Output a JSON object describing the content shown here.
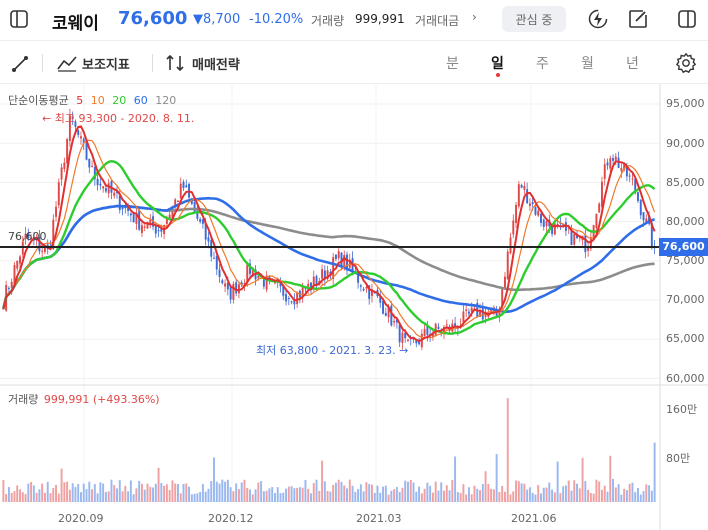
{
  "header": {
    "stock_name": "코웨이",
    "price": "76,600",
    "change": "▼8,700",
    "change_pct": "-10.20%",
    "volume_label": "거래량",
    "volume_value": "999,991",
    "amount_label": "거래대금",
    "more_label": "›",
    "favorite_label": "관심 중"
  },
  "toolbar": {
    "indicator_label": "보조지표",
    "trade_strategy_label": "매매전략",
    "periods": [
      "분",
      "일",
      "주",
      "월",
      "년"
    ],
    "active_period": "일"
  },
  "legend": {
    "ma_title": "단순이동평균",
    "ma_periods": [
      {
        "label": "5",
        "color": "#e03030"
      },
      {
        "label": "10",
        "color": "#f07a2a"
      },
      {
        "label": "20",
        "color": "#2ecc2e"
      },
      {
        "label": "60",
        "color": "#2f6ee8"
      },
      {
        "label": "120",
        "color": "#8c8c8c"
      }
    ],
    "volume_title": "거래량",
    "volume_value": "999,991 (+493.36%)"
  },
  "annotations": {
    "high": "← 최고 93,300 - 2020. 8. 11.",
    "low": "최저 63,800 - 2021. 3. 23. →",
    "last_line": "76,600"
  },
  "price_tag": "76,600",
  "y_axis_labels": [
    "95,000",
    "90,000",
    "85,000",
    "80,000",
    "75,000",
    "70,000",
    "65,000",
    "60,000"
  ],
  "volume_axis_labels": [
    "160만",
    "80만"
  ],
  "x_axis_labels": [
    "2020.09",
    "2020.12",
    "2021.03",
    "2021.06"
  ],
  "colors": {
    "up": "#e04848",
    "down": "#3d6ad6",
    "accent": "#2f6ee8"
  },
  "chart_data": {
    "type": "candlestick",
    "title": "코웨이",
    "ylim": [
      60000,
      97000
    ],
    "volume_ylim": [
      0,
      1800000
    ],
    "y_ticks": [
      95000,
      90000,
      85000,
      80000,
      75000,
      70000,
      65000,
      60000
    ],
    "x_ticks": [
      "2020.09",
      "2020.12",
      "2021.03",
      "2021.06"
    ],
    "price_path": [
      {
        "x": "2020.07",
        "y": 70000
      },
      {
        "x": "2020.07",
        "y": 78000
      },
      {
        "x": "2020.08",
        "y": 76000
      },
      {
        "x": "2020.08",
        "y": 93300
      },
      {
        "x": "2020.08",
        "y": 86000
      },
      {
        "x": "2020.09",
        "y": 83000
      },
      {
        "x": "2020.09",
        "y": 80000
      },
      {
        "x": "2020.10",
        "y": 79000
      },
      {
        "x": "2020.10",
        "y": 84500
      },
      {
        "x": "2020.10",
        "y": 78000
      },
      {
        "x": "2020.11",
        "y": 70500
      },
      {
        "x": "2020.11",
        "y": 74000
      },
      {
        "x": "2020.12",
        "y": 71500
      },
      {
        "x": "2020.12",
        "y": 70500
      },
      {
        "x": "2021.01",
        "y": 72500
      },
      {
        "x": "2021.01",
        "y": 75500
      },
      {
        "x": "2021.02",
        "y": 72000
      },
      {
        "x": "2021.02",
        "y": 69000
      },
      {
        "x": "2021.03",
        "y": 63800
      },
      {
        "x": "2021.03",
        "y": 66000
      },
      {
        "x": "2021.04",
        "y": 66500
      },
      {
        "x": "2021.04",
        "y": 68500
      },
      {
        "x": "2021.05",
        "y": 68000
      },
      {
        "x": "2021.05",
        "y": 85000
      },
      {
        "x": "2021.06",
        "y": 80000
      },
      {
        "x": "2021.06",
        "y": 78500
      },
      {
        "x": "2021.07",
        "y": 77000
      },
      {
        "x": "2021.07",
        "y": 89000
      },
      {
        "x": "2021.07",
        "y": 85000
      },
      {
        "x": "2021.07",
        "y": 76600
      }
    ],
    "series": [
      {
        "name": "5",
        "color": "#e03030"
      },
      {
        "name": "10",
        "color": "#f07a2a"
      },
      {
        "name": "20",
        "color": "#2ecc2e"
      },
      {
        "name": "60",
        "color": "#2f6ee8"
      },
      {
        "name": "120",
        "color": "#8c8c8c"
      }
    ],
    "high": {
      "value": 93300,
      "date": "2020. 8. 11."
    },
    "low": {
      "value": 63800,
      "date": "2021. 3. 23."
    },
    "last": 76600,
    "volume_last": 999991,
    "volume_change_pct": 493.36
  }
}
